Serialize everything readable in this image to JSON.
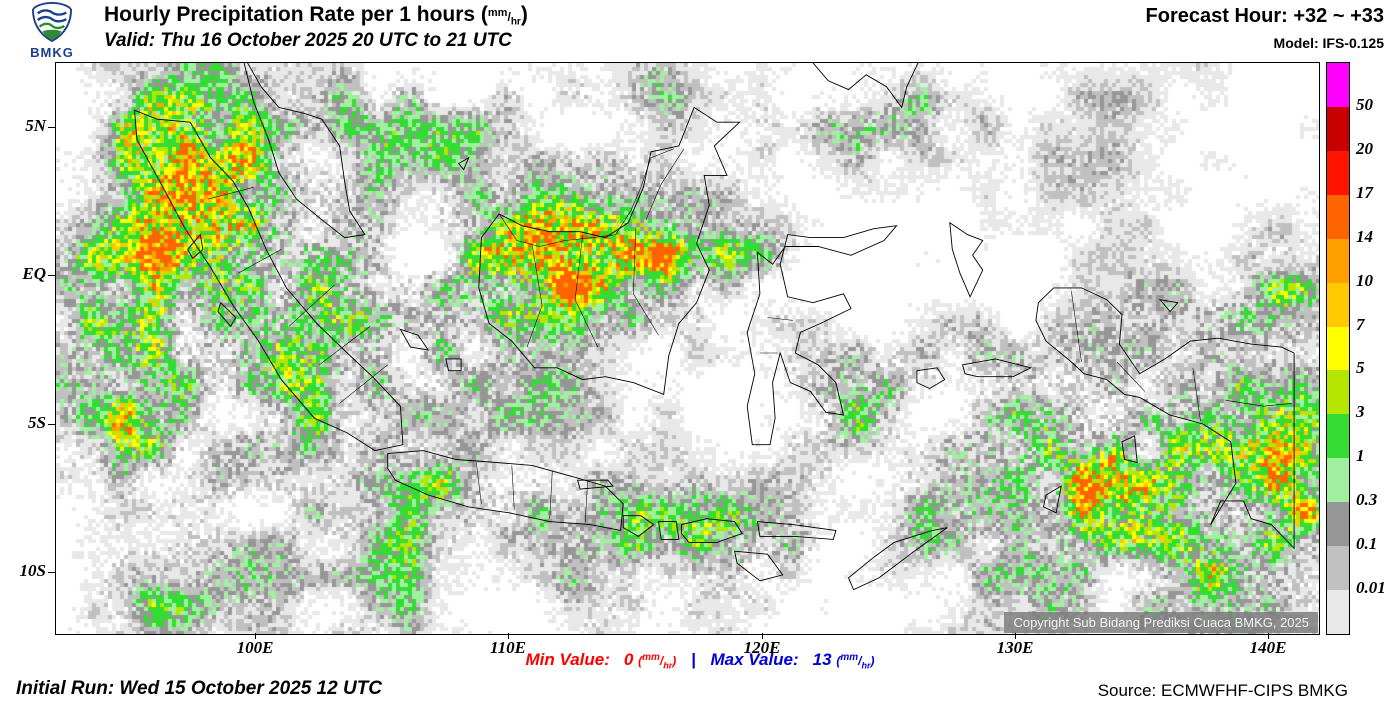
{
  "units": {
    "num": "mm",
    "den": "hr"
  },
  "header": {
    "logo_text": "BMKG",
    "title_prefix": "Hourly Precipitation Rate per 1 hours (",
    "title_suffix": ")",
    "valid": "Valid: Thu 16 October 2025 20 UTC to 21 UTC",
    "forecast_hour": "Forecast Hour: +32 ~ +33",
    "model": "Model: IFS-0.125"
  },
  "map": {
    "lat_labels": [
      "5N",
      "EQ",
      "5S",
      "10S"
    ],
    "lon_labels": [
      "100E",
      "110E",
      "120E",
      "130E",
      "140E"
    ],
    "copyright": "Copyright Sub Bidang Prediksi Cuaca BMKG, 2025"
  },
  "legend": {
    "values": [
      "50",
      "20",
      "17",
      "14",
      "10",
      "7",
      "5",
      "3",
      "1",
      "0.3",
      "0.1",
      "0.01"
    ],
    "colors": [
      "#ff00ff",
      "#c80000",
      "#ff1400",
      "#ff6400",
      "#ffa000",
      "#ffc800",
      "#ffff00",
      "#b4e600",
      "#32dc32",
      "#a0f0a0",
      "#969696",
      "#c0c0c0",
      "#e8e8e8"
    ]
  },
  "footer": {
    "min_label": "Min Value:",
    "min_value": "0",
    "separator": "|",
    "max_label": "Max Value:",
    "max_value": "13",
    "initial_run": "Initial Run: Wed 15 October 2025 12 UTC",
    "source": "Source: ECMWFHF-CIPS BMKG"
  },
  "colors": {
    "min": "#ff0000",
    "max": "#0000dd"
  }
}
